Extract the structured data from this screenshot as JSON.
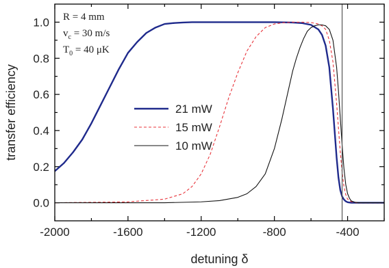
{
  "chart_data": {
    "type": "line",
    "title": "",
    "xlabel": "detuning δ",
    "ylabel": "transfer efficiency",
    "xlim": [
      -2000,
      -200
    ],
    "ylim": [
      -0.1,
      1.1
    ],
    "x_ticks": [
      -2000,
      -1600,
      -1200,
      -800,
      -400
    ],
    "x_tick_labels": [
      "-2000",
      "-1600",
      "-1200",
      "-800",
      "-400"
    ],
    "y_ticks": [
      0.0,
      0.2,
      0.4,
      0.6,
      0.8,
      1.0
    ],
    "y_tick_labels": [
      "0.0",
      "0.2",
      "0.4",
      "0.6",
      "0.8",
      "1.0"
    ],
    "vertical_line_x": -430,
    "parameters": {
      "r": {
        "main": "R = 4 mm"
      },
      "v": {
        "main": "v",
        "sub": "c",
        "rest": " = 30 m/s"
      },
      "t": {
        "main": "T",
        "sub": "0",
        "rest": " = 40 μK"
      }
    },
    "legend_position": "center-left",
    "series": [
      {
        "name": "21 mW",
        "color": "#1f2a8c",
        "style": "solid",
        "x": [
          -2000,
          -1950,
          -1900,
          -1850,
          -1800,
          -1750,
          -1700,
          -1650,
          -1600,
          -1550,
          -1500,
          -1450,
          -1400,
          -1350,
          -1300,
          -1250,
          -1200,
          -1100,
          -1000,
          -900,
          -800,
          -700,
          -650,
          -600,
          -560,
          -540,
          -520,
          -500,
          -480,
          -460,
          -450,
          -440,
          -430,
          -420,
          -410,
          -400,
          -380,
          -350,
          -300,
          -200
        ],
        "values": [
          0.175,
          0.22,
          0.28,
          0.35,
          0.44,
          0.54,
          0.64,
          0.74,
          0.83,
          0.89,
          0.94,
          0.97,
          0.99,
          0.995,
          0.998,
          1.0,
          1.0,
          1.0,
          1.0,
          1.0,
          1.0,
          0.998,
          0.995,
          0.985,
          0.96,
          0.93,
          0.87,
          0.75,
          0.52,
          0.25,
          0.14,
          0.07,
          0.035,
          0.018,
          0.008,
          0.003,
          0.0,
          0.0,
          0.0,
          0.0
        ]
      },
      {
        "name": "15 mW",
        "color": "#e8333a",
        "style": "dashed",
        "x": [
          -2000,
          -1600,
          -1400,
          -1300,
          -1250,
          -1200,
          -1150,
          -1100,
          -1050,
          -1000,
          -950,
          -900,
          -850,
          -800,
          -750,
          -700,
          -650,
          -600,
          -560,
          -540,
          -520,
          -500,
          -480,
          -460,
          -440,
          -430,
          -420,
          -410,
          -400,
          -380,
          -350,
          -300,
          -200
        ],
        "values": [
          0.0,
          0.005,
          0.02,
          0.05,
          0.09,
          0.16,
          0.27,
          0.42,
          0.58,
          0.72,
          0.84,
          0.92,
          0.97,
          0.99,
          0.997,
          1.0,
          1.0,
          0.998,
          0.99,
          0.98,
          0.96,
          0.9,
          0.78,
          0.55,
          0.28,
          0.17,
          0.09,
          0.045,
          0.02,
          0.006,
          0.0,
          0.0,
          0.0
        ]
      },
      {
        "name": "10 mW",
        "color": "#111111",
        "style": "solid",
        "x": [
          -2000,
          -1400,
          -1200,
          -1100,
          -1000,
          -950,
          -900,
          -850,
          -800,
          -760,
          -720,
          -700,
          -680,
          -660,
          -640,
          -620,
          -600,
          -580,
          -560,
          -540,
          -520,
          -500,
          -480,
          -460,
          -450,
          -440,
          -430,
          -420,
          -410,
          -400,
          -390,
          -380,
          -360,
          -340,
          -300,
          -200
        ],
        "values": [
          0.0,
          0.0,
          0.005,
          0.012,
          0.03,
          0.05,
          0.09,
          0.16,
          0.3,
          0.46,
          0.64,
          0.73,
          0.8,
          0.86,
          0.91,
          0.95,
          0.97,
          0.98,
          0.985,
          0.985,
          0.98,
          0.96,
          0.9,
          0.75,
          0.62,
          0.47,
          0.32,
          0.19,
          0.1,
          0.05,
          0.025,
          0.01,
          0.003,
          0.0,
          0.0,
          0.0
        ]
      }
    ]
  }
}
